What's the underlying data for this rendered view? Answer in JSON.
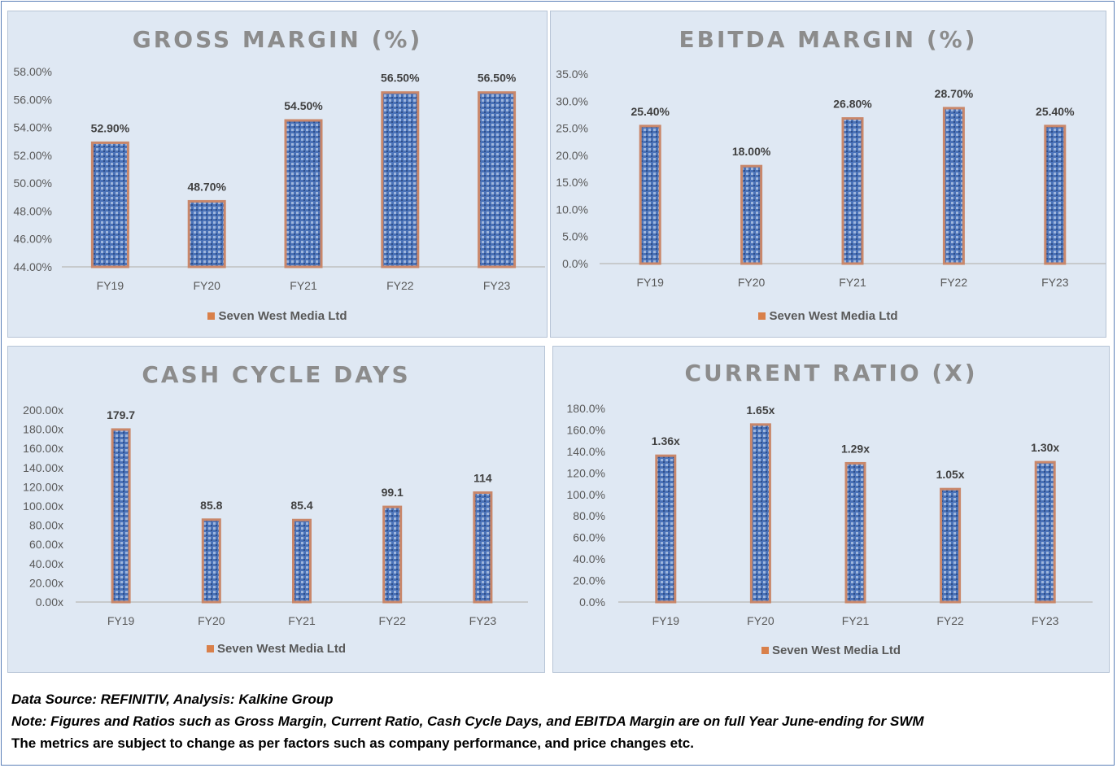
{
  "legend_label": "Seven West Media Ltd",
  "colors": {
    "bar_fill": "#4a72b8",
    "bar_border": "#c9876a",
    "legend_swatch": "#d9804a",
    "panel_bg": "#dfe8f3"
  },
  "footer": {
    "source": "Data Source: REFINITIV, Analysis: Kalkine Group",
    "note": "Note: Figures and Ratios such as Gross Margin, Current Ratio, Cash Cycle Days, and EBITDA Margin are on full Year June-ending for SWM",
    "disclaimer": "The metrics are subject to change as per factors such as company performance, and price changes etc."
  },
  "chart_data": [
    {
      "type": "bar",
      "title": "GROSS MARGIN (%)",
      "categories": [
        "FY19",
        "FY20",
        "FY21",
        "FY22",
        "FY23"
      ],
      "series": [
        {
          "name": "Seven West Media Ltd",
          "values": [
            52.9,
            48.7,
            54.5,
            56.5,
            56.5
          ]
        }
      ],
      "data_labels": [
        "52.90%",
        "48.70%",
        "54.50%",
        "56.50%",
        "56.50%"
      ],
      "ylim": [
        44,
        58
      ],
      "yticks": [
        "44.00%",
        "46.00%",
        "48.00%",
        "50.00%",
        "52.00%",
        "54.00%",
        "56.00%",
        "58.00%"
      ],
      "legend": "bottom"
    },
    {
      "type": "bar",
      "title": "EBITDA MARGIN (%)",
      "categories": [
        "FY19",
        "FY20",
        "FY21",
        "FY22",
        "FY23"
      ],
      "series": [
        {
          "name": "Seven West Media Ltd",
          "values": [
            25.4,
            18.0,
            26.8,
            28.7,
            25.4
          ]
        }
      ],
      "data_labels": [
        "25.40%",
        "18.00%",
        "26.80%",
        "28.70%",
        "25.40%"
      ],
      "ylim": [
        0,
        35
      ],
      "yticks": [
        "0.0%",
        "5.0%",
        "10.0%",
        "15.0%",
        "20.0%",
        "25.0%",
        "30.0%",
        "35.0%"
      ],
      "legend": "bottom"
    },
    {
      "type": "bar",
      "title": "CASH CYCLE DAYS",
      "categories": [
        "FY19",
        "FY20",
        "FY21",
        "FY22",
        "FY23"
      ],
      "series": [
        {
          "name": "Seven West Media Ltd",
          "values": [
            179.7,
            85.8,
            85.4,
            99.1,
            114
          ]
        }
      ],
      "data_labels": [
        "179.7",
        "85.8",
        "85.4",
        "99.1",
        "114"
      ],
      "ylim": [
        0,
        200
      ],
      "yticks": [
        "0.00x",
        "20.00x",
        "40.00x",
        "60.00x",
        "80.00x",
        "100.00x",
        "120.00x",
        "140.00x",
        "160.00x",
        "180.00x",
        "200.00x"
      ],
      "legend": "bottom"
    },
    {
      "type": "bar",
      "title": "CURRENT RATIO (X)",
      "categories": [
        "FY19",
        "FY20",
        "FY21",
        "FY22",
        "FY23"
      ],
      "series": [
        {
          "name": "Seven West Media Ltd",
          "values": [
            136,
            165,
            129,
            105,
            130
          ]
        }
      ],
      "data_labels": [
        "1.36x",
        "1.65x",
        "1.29x",
        "1.05x",
        "1.30x"
      ],
      "ylim": [
        0,
        180
      ],
      "yticks": [
        "0.0%",
        "20.0%",
        "40.0%",
        "60.0%",
        "80.0%",
        "100.0%",
        "120.0%",
        "140.0%",
        "160.0%",
        "180.0%"
      ],
      "legend": "bottom"
    }
  ]
}
